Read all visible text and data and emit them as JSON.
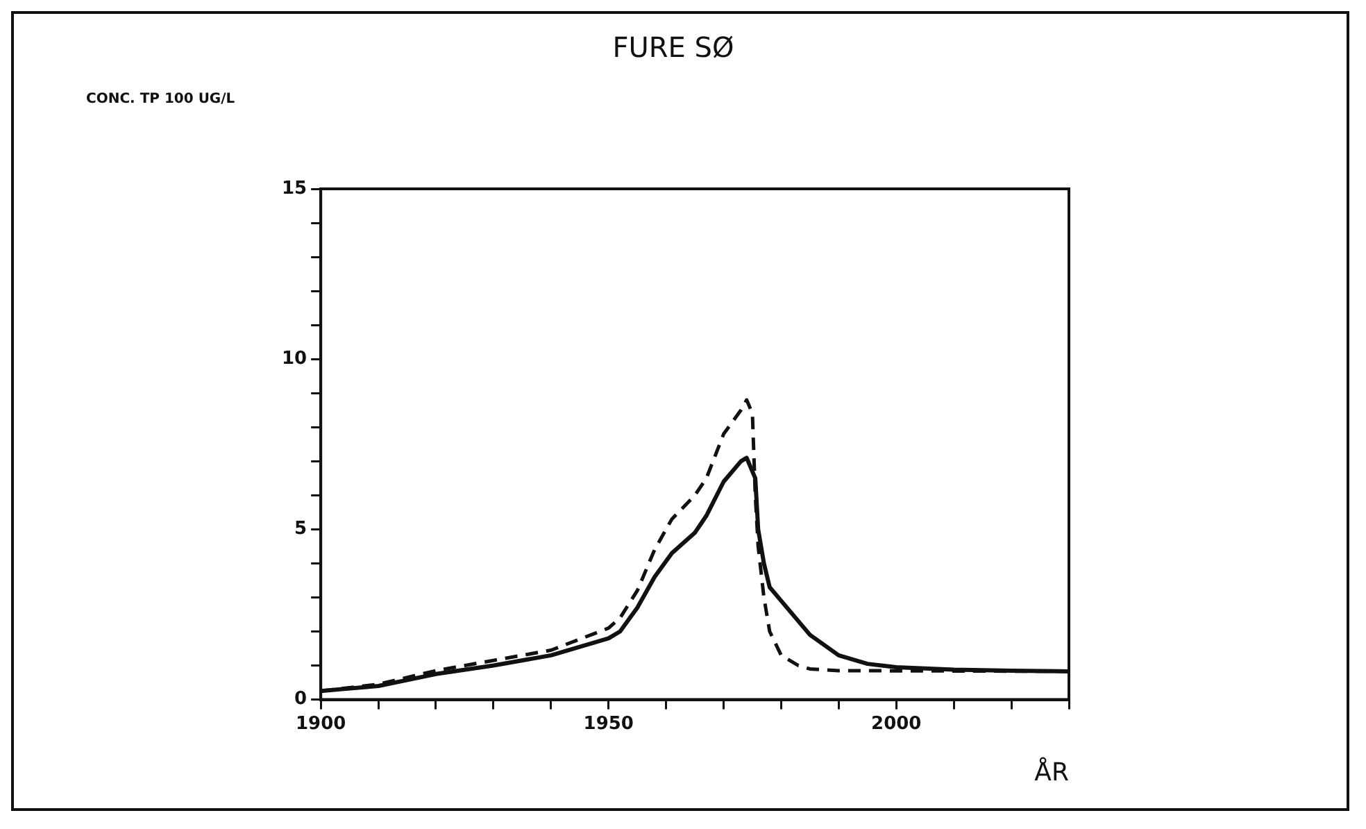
{
  "chart_data": {
    "type": "line",
    "title": "FURE SØ",
    "annotations": [
      "CONC. TP 100 UG/L"
    ],
    "xlabel": "ÅR",
    "xlim": [
      1900,
      2030
    ],
    "xticks": [
      1900,
      {
        "value": 1910,
        "label": null
      },
      {
        "value": 1920,
        "label": null
      },
      {
        "value": 1930,
        "label": null
      },
      {
        "value": 1940,
        "label": null
      },
      1950,
      {
        "value": 1960,
        "label": null
      },
      {
        "value": 1970,
        "label": null
      },
      {
        "value": 1980,
        "label": null
      },
      {
        "value": 1990,
        "label": null
      },
      2000,
      {
        "value": 2010,
        "label": null
      },
      {
        "value": 2020,
        "label": null
      },
      {
        "value": 2030,
        "label": null
      }
    ],
    "ylim": [
      0,
      15
    ],
    "yticks": [
      0,
      {
        "value": 1,
        "label": null
      },
      {
        "value": 2,
        "label": null
      },
      {
        "value": 3,
        "label": null
      },
      {
        "value": 4,
        "label": null
      },
      5,
      {
        "value": 6,
        "label": null
      },
      {
        "value": 7,
        "label": null
      },
      {
        "value": 8,
        "label": null
      },
      {
        "value": 9,
        "label": null
      },
      10,
      {
        "value": 11,
        "label": null
      },
      {
        "value": 12,
        "label": null
      },
      {
        "value": 13,
        "label": null
      },
      {
        "value": 14,
        "label": null
      },
      15
    ],
    "grid": false,
    "legend": false,
    "marker": "none",
    "series": [
      {
        "color": "#111111",
        "line_style": "solid",
        "x": [
          1900,
          1910,
          1920,
          1930,
          1940,
          1950,
          1952,
          1955,
          1958,
          1961,
          1965,
          1967,
          1970,
          1973,
          1974,
          1975.5,
          1976,
          1977,
          1978,
          1980,
          1985,
          1990,
          1995,
          2000,
          2010,
          2020,
          2030
        ],
        "values": [
          0.25,
          0.4,
          0.75,
          1.0,
          1.3,
          1.8,
          2.0,
          2.7,
          3.6,
          4.3,
          4.9,
          5.4,
          6.4,
          7.0,
          7.1,
          6.5,
          5.0,
          4.0,
          3.3,
          2.9,
          1.9,
          1.3,
          1.05,
          0.95,
          0.88,
          0.85,
          0.83
        ]
      },
      {
        "color": "#111111",
        "line_style": "dashed",
        "x": [
          1900,
          1910,
          1920,
          1930,
          1940,
          1950,
          1952,
          1955,
          1958,
          1961,
          1965,
          1967,
          1970,
          1973,
          1974,
          1975,
          1975.5,
          1976,
          1977,
          1978,
          1980,
          1983,
          1985,
          1990,
          2030
        ],
        "values": [
          0.25,
          0.45,
          0.85,
          1.15,
          1.45,
          2.1,
          2.4,
          3.2,
          4.4,
          5.3,
          6.0,
          6.5,
          7.8,
          8.5,
          8.8,
          8.4,
          6.0,
          4.5,
          3.0,
          2.0,
          1.3,
          1.0,
          0.9,
          0.85,
          0.83
        ]
      }
    ]
  }
}
